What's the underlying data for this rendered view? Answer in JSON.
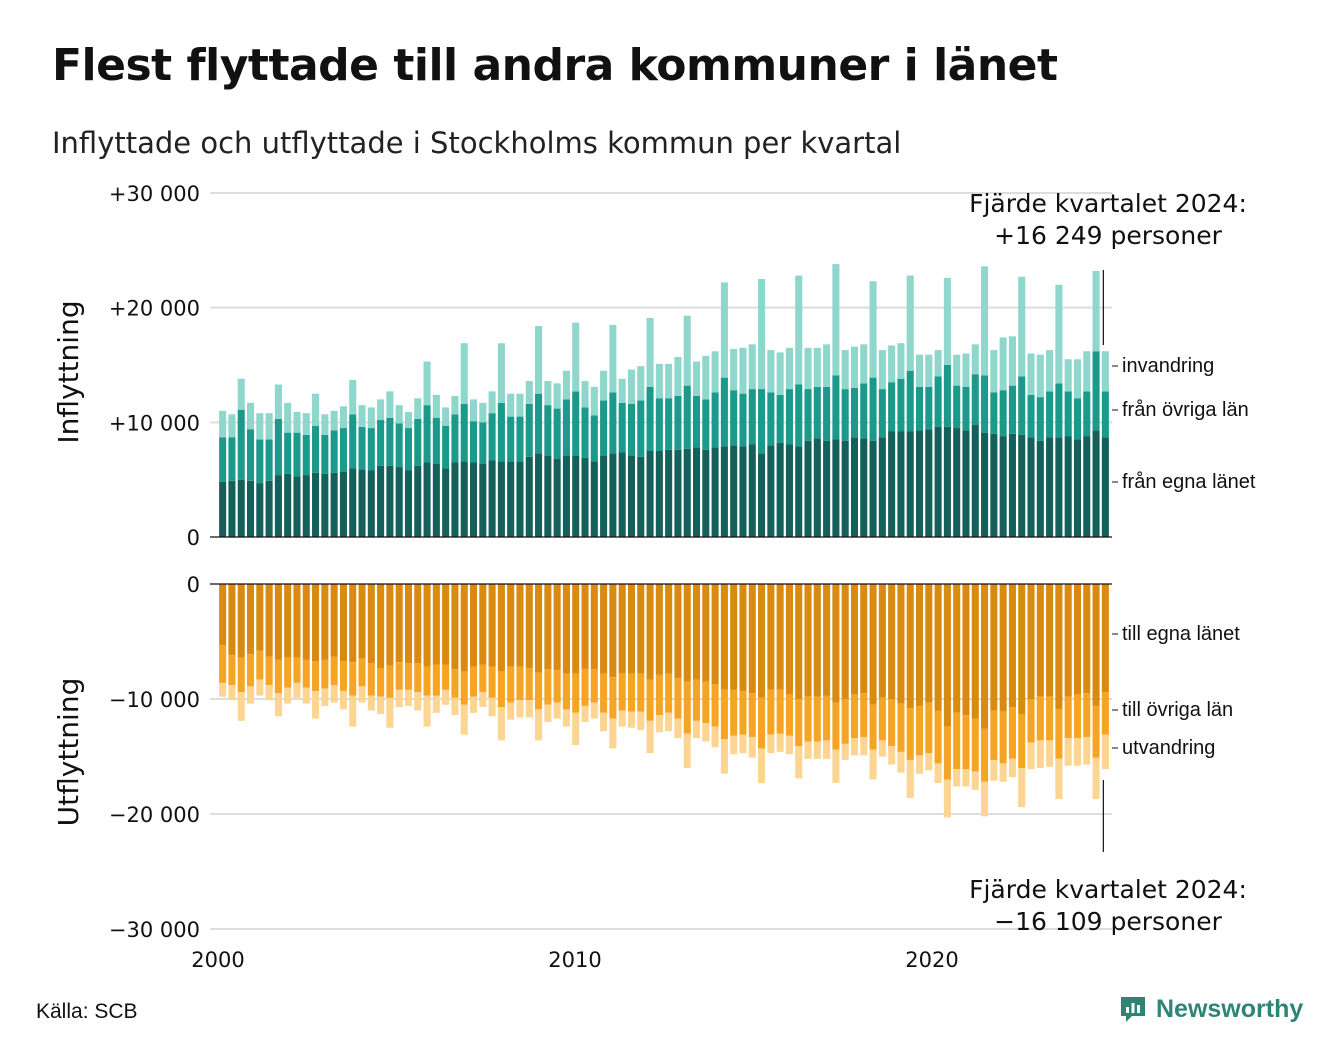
{
  "title": "Flest flyttade till andra kommuner i länet",
  "subtitle": "Inflyttade och utflyttade i Stockholms kommun per kvartal",
  "source": "Källa: SCB",
  "brand": "Newsworthy",
  "colors": {
    "in_egna": "#15605a",
    "in_ovriga": "#1b9a8b",
    "in_invandring": "#8fd6cc",
    "out_egna": "#d98a10",
    "out_ovriga": "#f6a424",
    "out_utvandring": "#fbd591",
    "grid": "#dddddd",
    "brand": "#2e8576"
  },
  "chart_data": {
    "type": "bar",
    "stacked": true,
    "x_axis": {
      "start": "2000 Q1",
      "end": "2024 Q4",
      "ticks": [
        "2000",
        "2010",
        "2020"
      ]
    },
    "panels": [
      {
        "ylabel": "Inflyttning",
        "ylim": [
          0,
          30000
        ],
        "yticks": [
          "+30 000",
          "+20 000",
          "+10 000",
          "0"
        ],
        "annotation": [
          "Fjärde kvartalet 2024:",
          "+16 249 personer"
        ],
        "series": [
          {
            "name": "från egna länet",
            "values": [
              4800,
              4900,
              5000,
              4900,
              4700,
              4900,
              5400,
              5500,
              5300,
              5400,
              5600,
              5500,
              5600,
              5700,
              6000,
              5900,
              5800,
              6200,
              6200,
              6100,
              5800,
              6200,
              6500,
              6400,
              6000,
              6500,
              6600,
              6500,
              6400,
              6700,
              6600,
              6600,
              6600,
              7000,
              7300,
              7100,
              6800,
              7100,
              7100,
              6900,
              6600,
              7100,
              7300,
              7400,
              7100,
              7000,
              7500,
              7500,
              7600,
              7600,
              7700,
              7800,
              7600,
              7800,
              7900,
              8000,
              7900,
              8100,
              7300,
              8000,
              8200,
              8100,
              7900,
              8400,
              8600,
              8400,
              8500,
              8400,
              8700,
              8600,
              8400,
              8700,
              9200,
              9200,
              9200,
              9300,
              9400,
              9600,
              9600,
              9500,
              9300,
              9800,
              9100,
              9000,
              8800,
              9000,
              8900,
              8700,
              8400,
              8700,
              8700,
              8800,
              8500,
              8800,
              9300,
              8700
            ]
          },
          {
            "name": "från övriga län",
            "values": [
              3900,
              3800,
              6100,
              4500,
              3800,
              3600,
              4900,
              3600,
              3800,
              3500,
              4100,
              3400,
              3700,
              3800,
              4700,
              3700,
              3700,
              4000,
              4200,
              3800,
              3700,
              4100,
              5000,
              4000,
              3700,
              4200,
              5000,
              3600,
              3600,
              4100,
              5100,
              3900,
              3900,
              4600,
              5200,
              4400,
              4400,
              4900,
              5600,
              4400,
              4000,
              4800,
              5300,
              4300,
              4500,
              4900,
              5600,
              4600,
              4500,
              4700,
              5500,
              4500,
              4400,
              4800,
              6000,
              4800,
              4600,
              4800,
              5600,
              4600,
              4200,
              4800,
              5400,
              4500,
              4500,
              4700,
              5600,
              4500,
              4300,
              4800,
              5500,
              4200,
              4300,
              4600,
              5300,
              3800,
              3700,
              4400,
              5400,
              3700,
              3800,
              4400,
              5000,
              3600,
              4000,
              4200,
              5100,
              3700,
              3800,
              4000,
              4700,
              3900,
              3600,
              3900,
              6900,
              4000
            ]
          },
          {
            "name": "invandring",
            "values": [
              2300,
              2000,
              2700,
              2300,
              2300,
              2300,
              3000,
              2600,
              1800,
              1900,
              2800,
              1800,
              1700,
              1900,
              3000,
              1900,
              1800,
              1800,
              2300,
              1600,
              1400,
              1800,
              3800,
              2000,
              1600,
              1600,
              5300,
              1900,
              1700,
              1900,
              5200,
              2000,
              2000,
              2000,
              5900,
              2100,
              2200,
              2500,
              6000,
              2300,
              2500,
              2600,
              5900,
              2100,
              3000,
              3000,
              6000,
              3000,
              3000,
              3400,
              6100,
              3000,
              3800,
              3600,
              8300,
              3600,
              4000,
              3900,
              9600,
              3700,
              3700,
              3600,
              9500,
              3600,
              3400,
              3700,
              9700,
              3400,
              3600,
              3400,
              8400,
              3400,
              3200,
              3100,
              8300,
              2800,
              2800,
              2300,
              7600,
              2700,
              2900,
              2600,
              9500,
              3700,
              4600,
              4300,
              8700,
              3600,
              3700,
              3600,
              8600,
              2800,
              3400,
              3500,
              7000,
              3500
            ]
          }
        ]
      },
      {
        "ylabel": "Utflyttning",
        "ylim": [
          -30000,
          0
        ],
        "yticks": [
          "0",
          "−10 000",
          "−20 000",
          "−30 000"
        ],
        "annotation": [
          "Fjärde kvartalet 2024:",
          "−16 109 personer"
        ],
        "series": [
          {
            "name": "till egna länet",
            "values": [
              -5300,
              -6200,
              -6400,
              -6100,
              -5800,
              -6300,
              -6600,
              -6400,
              -6400,
              -6600,
              -6700,
              -6600,
              -6300,
              -6700,
              -6800,
              -6500,
              -6900,
              -7300,
              -7100,
              -6800,
              -6900,
              -6900,
              -7200,
              -7000,
              -7000,
              -7400,
              -7600,
              -7200,
              -7000,
              -7200,
              -7600,
              -7200,
              -7200,
              -7300,
              -7700,
              -7400,
              -7500,
              -7800,
              -7800,
              -7400,
              -7400,
              -7800,
              -8100,
              -7800,
              -7800,
              -7800,
              -8300,
              -7900,
              -7800,
              -8200,
              -8500,
              -8300,
              -8500,
              -8700,
              -9200,
              -9200,
              -9300,
              -9500,
              -9900,
              -9200,
              -9200,
              -9600,
              -10000,
              -9800,
              -9800,
              -9700,
              -10300,
              -10000,
              -9600,
              -9500,
              -10500,
              -9900,
              -10000,
              -10400,
              -10800,
              -10600,
              -10300,
              -11000,
              -12400,
              -11200,
              -11400,
              -11700,
              -12600,
              -11000,
              -11100,
              -10700,
              -11300,
              -10000,
              -9800,
              -9800,
              -10900,
              -9800,
              -9600,
              -9500,
              -10600,
              -9400
            ]
          },
          {
            "name": "till övriga län",
            "values": [
              -3300,
              -2600,
              -3000,
              -2800,
              -2500,
              -2500,
              -2900,
              -2600,
              -2200,
              -2400,
              -2600,
              -2500,
              -2500,
              -2600,
              -2900,
              -2400,
              -2800,
              -2500,
              -2800,
              -2400,
              -2300,
              -2500,
              -2500,
              -2700,
              -2200,
              -2500,
              -2900,
              -2600,
              -2400,
              -2700,
              -3100,
              -3100,
              -2900,
              -2800,
              -3200,
              -3100,
              -2800,
              -3100,
              -3400,
              -3200,
              -2900,
              -3400,
              -3600,
              -3200,
              -3300,
              -3300,
              -3600,
              -3500,
              -3400,
              -3500,
              -4500,
              -3600,
              -3600,
              -3700,
              -4300,
              -4000,
              -3800,
              -3800,
              -4400,
              -3900,
              -3800,
              -3600,
              -4100,
              -3900,
              -3900,
              -3900,
              -4100,
              -3900,
              -3800,
              -3800,
              -3900,
              -3700,
              -4100,
              -4200,
              -4500,
              -4300,
              -4400,
              -4600,
              -4600,
              -4900,
              -4700,
              -4600,
              -4600,
              -4300,
              -4500,
              -4500,
              -4700,
              -3800,
              -3800,
              -3800,
              -4300,
              -3600,
              -3800,
              -3800,
              -4500,
              -3700
            ]
          },
          {
            "name": "utvandring",
            "values": [
              -1200,
              -1300,
              -2500,
              -1500,
              -1400,
              -1300,
              -2000,
              -1400,
              -1300,
              -1400,
              -2400,
              -1500,
              -1500,
              -1600,
              -2700,
              -1400,
              -1300,
              -1500,
              -2600,
              -1500,
              -1400,
              -1600,
              -2700,
              -1500,
              -1300,
              -1500,
              -2600,
              -1400,
              -1300,
              -1600,
              -2900,
              -1500,
              -1500,
              -1500,
              -2700,
              -1500,
              -1400,
              -1500,
              -2800,
              -1400,
              -1400,
              -1600,
              -2600,
              -1400,
              -1400,
              -1600,
              -2800,
              -1500,
              -1600,
              -1700,
              -3000,
              -1500,
              -1600,
              -1800,
              -3000,
              -1600,
              -1600,
              -1800,
              -3000,
              -1600,
              -1600,
              -1600,
              -2800,
              -1500,
              -1500,
              -1600,
              -2900,
              -1400,
              -1500,
              -1600,
              -2600,
              -1400,
              -1600,
              -1800,
              -3300,
              -1600,
              -1500,
              -1700,
              -3300,
              -1500,
              -1500,
              -1600,
              -3000,
              -1800,
              -1600,
              -1600,
              -3400,
              -2300,
              -2400,
              -2300,
              -3500,
              -2400,
              -2400,
              -2400,
              -3600,
              -3000
            ]
          }
        ]
      }
    ]
  }
}
